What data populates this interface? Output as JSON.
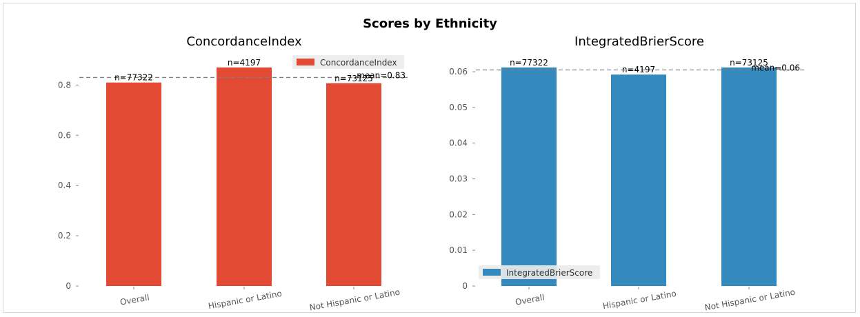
{
  "title": "Scores by Ethnicity",
  "chart_data": [
    {
      "type": "bar",
      "title": "ConcordanceIndex",
      "categories": [
        "Overall",
        "Hispanic or Latino",
        "Not Hispanic or Latino"
      ],
      "series": [
        {
          "name": "ConcordanceIndex",
          "values": [
            0.81,
            0.87,
            0.807
          ],
          "color": "#E24A33"
        }
      ],
      "bar_labels": [
        "n=77322",
        "n=4197",
        "n=73125"
      ],
      "mean": {
        "value": 0.83,
        "label": "mean=0.83"
      },
      "yticks": [
        0.0,
        0.2,
        0.4,
        0.6,
        0.8
      ],
      "ylim": [
        0,
        0.9135
      ],
      "legend": "top-right",
      "grid": false
    },
    {
      "type": "bar",
      "title": "IntegratedBrierScore",
      "categories": [
        "Overall",
        "Hispanic or Latino",
        "Not Hispanic or Latino"
      ],
      "series": [
        {
          "name": "IntegratedBrierScore",
          "values": [
            0.0612,
            0.0592,
            0.0612
          ],
          "color": "#348ABD"
        }
      ],
      "bar_labels": [
        "n=77322",
        "n=4197",
        "n=73125"
      ],
      "mean": {
        "value": 0.0605,
        "label": "mean=0.06"
      },
      "yticks": [
        0.0,
        0.01,
        0.02,
        0.03,
        0.04,
        0.05,
        0.06
      ],
      "ylim": [
        0,
        0.06426
      ],
      "legend": "bottom-left",
      "grid": false
    }
  ]
}
